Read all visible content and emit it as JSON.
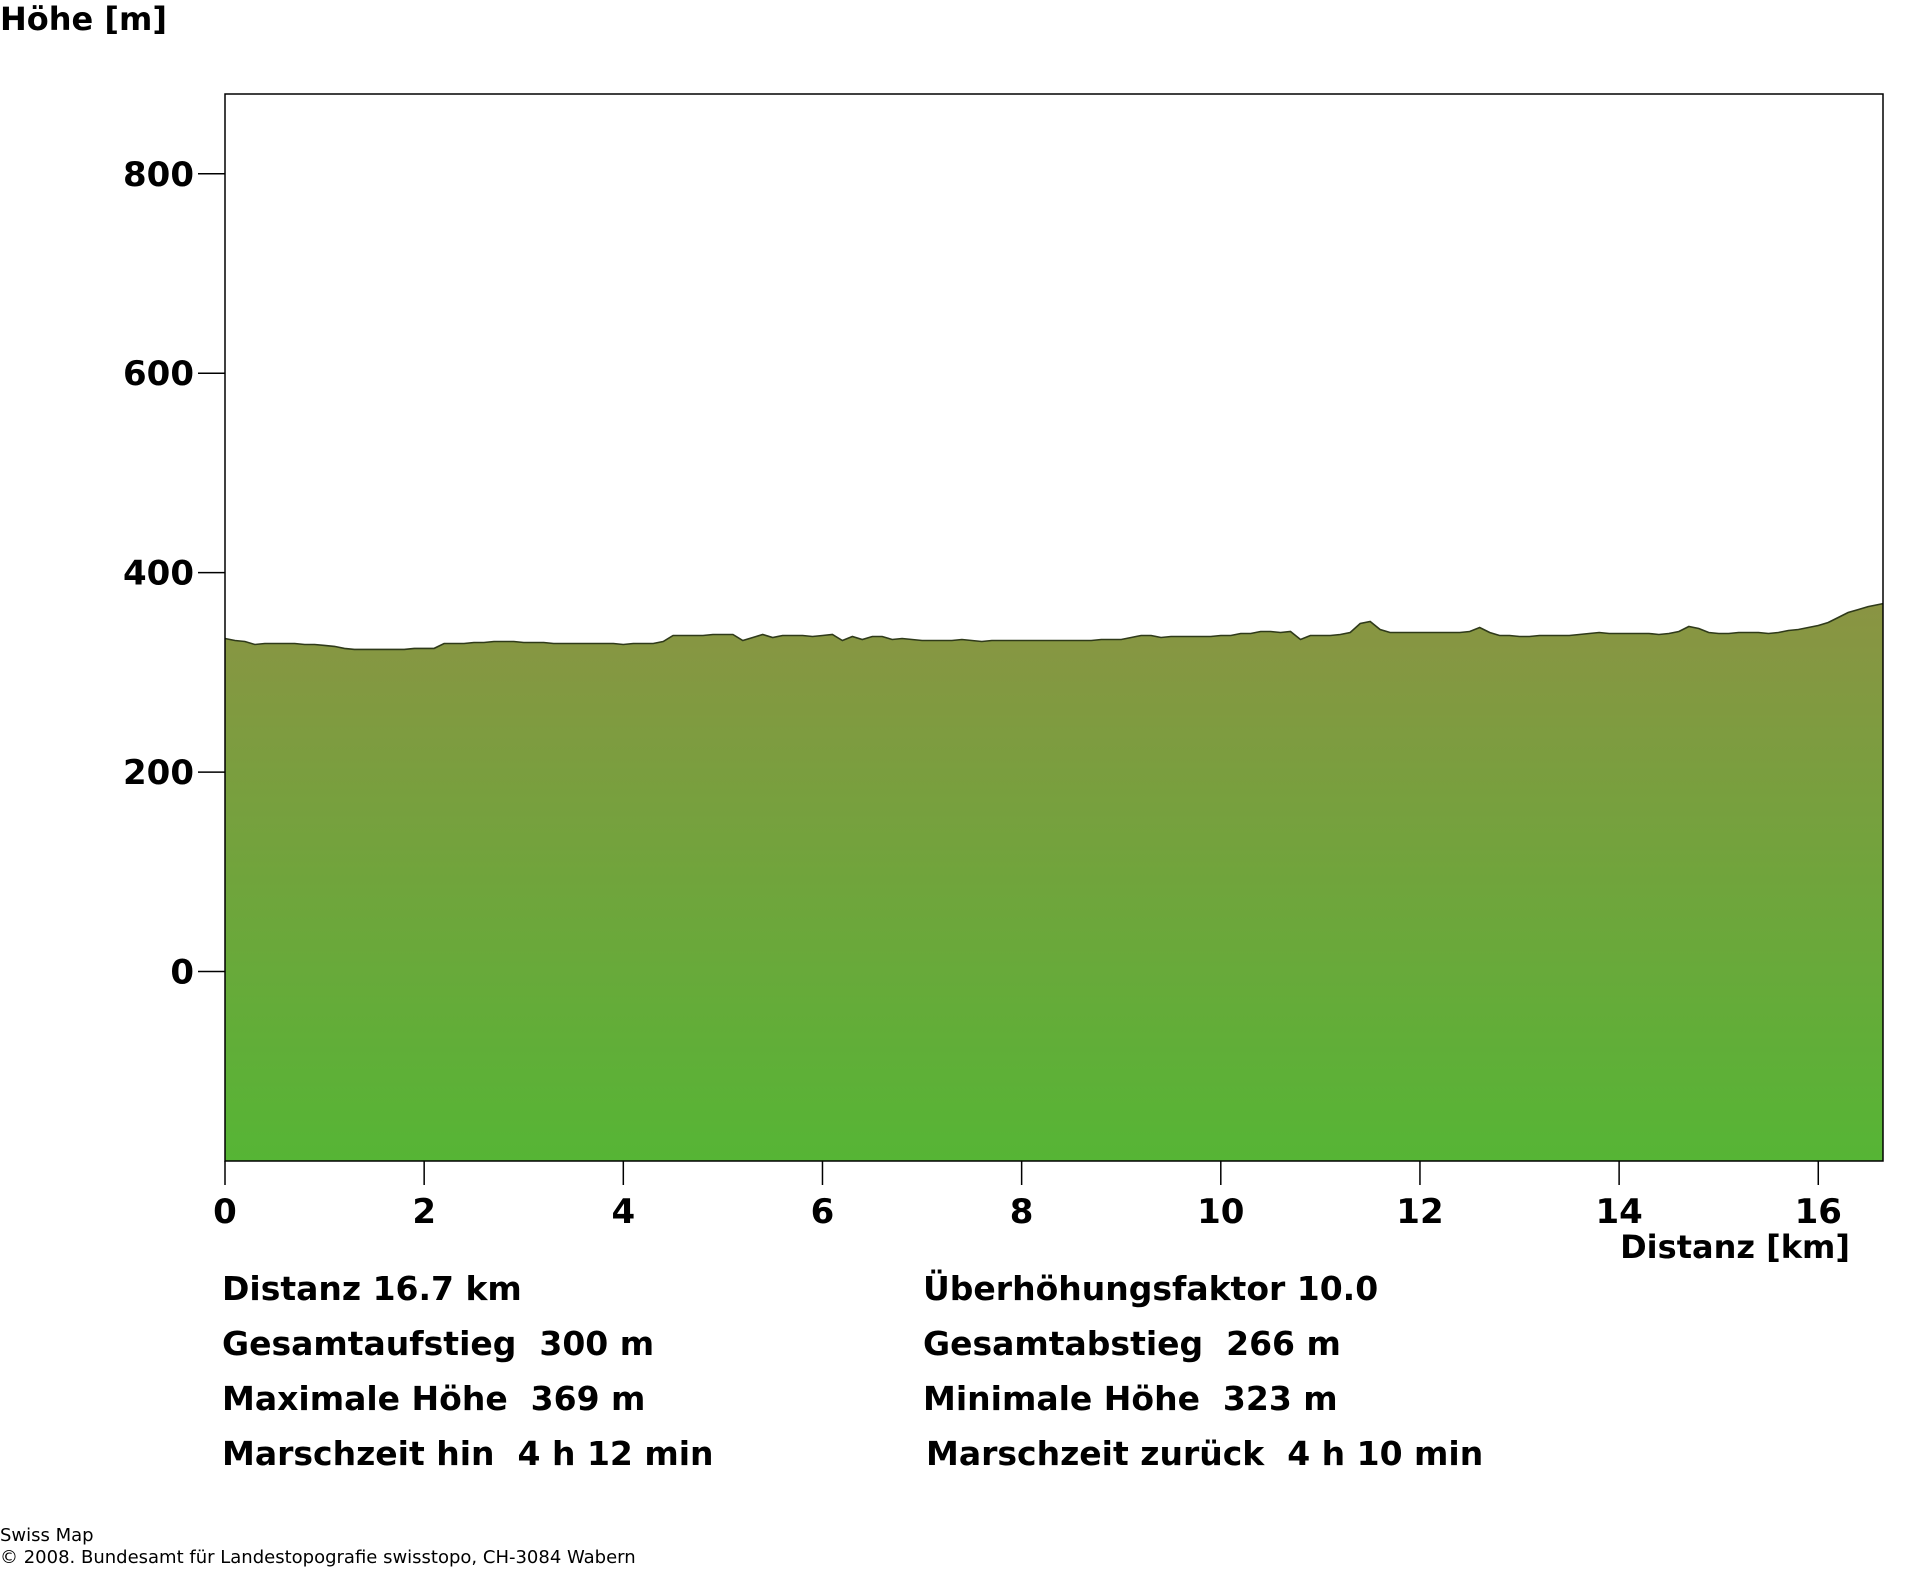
{
  "chart_data": {
    "type": "area",
    "ylabel": "Höhe [m]",
    "xlabel": "Distanz [km]",
    "xlim": [
      0,
      16.65
    ],
    "ylim": [
      -190,
      880
    ],
    "x_ticks": [
      0,
      2,
      4,
      6,
      8,
      10,
      12,
      14,
      16
    ],
    "y_ticks": [
      0,
      200,
      400,
      600,
      800
    ],
    "grid": false,
    "fill_colors": {
      "top": "#8a9443",
      "bottom": "#56b535"
    },
    "outline_color": "#2f3a1a",
    "series": [
      {
        "x": [
          0,
          0.1,
          0.2,
          0.3,
          0.4,
          0.5,
          0.6,
          0.7,
          0.8,
          0.9,
          1.0,
          1.1,
          1.2,
          1.3,
          1.4,
          1.5,
          1.6,
          1.7,
          1.8,
          1.9,
          2.0,
          2.1,
          2.2,
          2.3,
          2.4,
          2.5,
          2.6,
          2.7,
          2.8,
          2.9,
          3.0,
          3.1,
          3.2,
          3.3,
          3.4,
          3.5,
          3.6,
          3.7,
          3.8,
          3.9,
          4.0,
          4.1,
          4.2,
          4.3,
          4.4,
          4.5,
          4.6,
          4.7,
          4.8,
          4.9,
          5.0,
          5.1,
          5.2,
          5.3,
          5.4,
          5.5,
          5.6,
          5.7,
          5.8,
          5.9,
          6.0,
          6.1,
          6.2,
          6.3,
          6.4,
          6.5,
          6.6,
          6.7,
          6.8,
          6.9,
          7.0,
          7.1,
          7.2,
          7.3,
          7.4,
          7.5,
          7.6,
          7.7,
          7.8,
          7.9,
          8.0,
          8.1,
          8.2,
          8.3,
          8.4,
          8.5,
          8.6,
          8.7,
          8.8,
          8.9,
          9.0,
          9.1,
          9.2,
          9.3,
          9.4,
          9.5,
          9.6,
          9.7,
          9.8,
          9.9,
          10.0,
          10.1,
          10.2,
          10.3,
          10.4,
          10.5,
          10.6,
          10.7,
          10.8,
          10.9,
          11.0,
          11.1,
          11.2,
          11.3,
          11.4,
          11.5,
          11.6,
          11.7,
          11.8,
          11.9,
          12.0,
          12.1,
          12.2,
          12.3,
          12.4,
          12.5,
          12.6,
          12.7,
          12.8,
          12.9,
          13.0,
          13.1,
          13.2,
          13.3,
          13.4,
          13.5,
          13.6,
          13.7,
          13.8,
          13.9,
          14.0,
          14.1,
          14.2,
          14.3,
          14.4,
          14.5,
          14.6,
          14.7,
          14.8,
          14.9,
          15.0,
          15.1,
          15.2,
          15.3,
          15.4,
          15.5,
          15.6,
          15.7,
          15.8,
          15.9,
          16.0,
          16.1,
          16.2,
          16.3,
          16.4,
          16.5,
          16.65
        ],
        "y": [
          334,
          332,
          331,
          328,
          329,
          329,
          329,
          329,
          328,
          328,
          327,
          326,
          324,
          323,
          323,
          323,
          323,
          323,
          323,
          324,
          324,
          324,
          329,
          329,
          329,
          330,
          330,
          331,
          331,
          331,
          330,
          330,
          330,
          329,
          329,
          329,
          329,
          329,
          329,
          329,
          328,
          329,
          329,
          329,
          331,
          337,
          337,
          337,
          337,
          338,
          338,
          338,
          332,
          335,
          338,
          335,
          337,
          337,
          337,
          336,
          337,
          338,
          332,
          336,
          333,
          336,
          336,
          333,
          334,
          333,
          332,
          332,
          332,
          332,
          333,
          332,
          331,
          332,
          332,
          332,
          332,
          332,
          332,
          332,
          332,
          332,
          332,
          332,
          333,
          333,
          333,
          335,
          337,
          337,
          335,
          336,
          336,
          336,
          336,
          336,
          337,
          337,
          339,
          339,
          341,
          341,
          340,
          341,
          333,
          337,
          337,
          337,
          338,
          340,
          349,
          351,
          343,
          340,
          340,
          340,
          340,
          340,
          340,
          340,
          340,
          341,
          345,
          340,
          337,
          337,
          336,
          336,
          337,
          337,
          337,
          337,
          338,
          339,
          340,
          339,
          339,
          339,
          339,
          339,
          338,
          339,
          341,
          346,
          344,
          340,
          339,
          339,
          340,
          340,
          340,
          339,
          340,
          342,
          343,
          345,
          347,
          350,
          355,
          360,
          363,
          366,
          369
        ]
      }
    ]
  },
  "stats": {
    "distanz": "Distanz 16.7 km",
    "ueberhoehung": "Überhöhungsfaktor 10.0",
    "aufstieg": "Gesamtaufstieg  300 m",
    "abstieg": "Gesamtabstieg  266 m",
    "max_hoehe": "Maximale Höhe  369 m",
    "min_hoehe": "Minimale Höhe  323 m",
    "zeit_hin": "Marschzeit hin  4 h 12 min",
    "zeit_zurueck": "Marschzeit zurück  4 h 10 min"
  },
  "footer": {
    "line1": "Swiss Map",
    "line2": "© 2008. Bundesamt für Landestopografie swisstopo, CH-3084 Wabern"
  }
}
